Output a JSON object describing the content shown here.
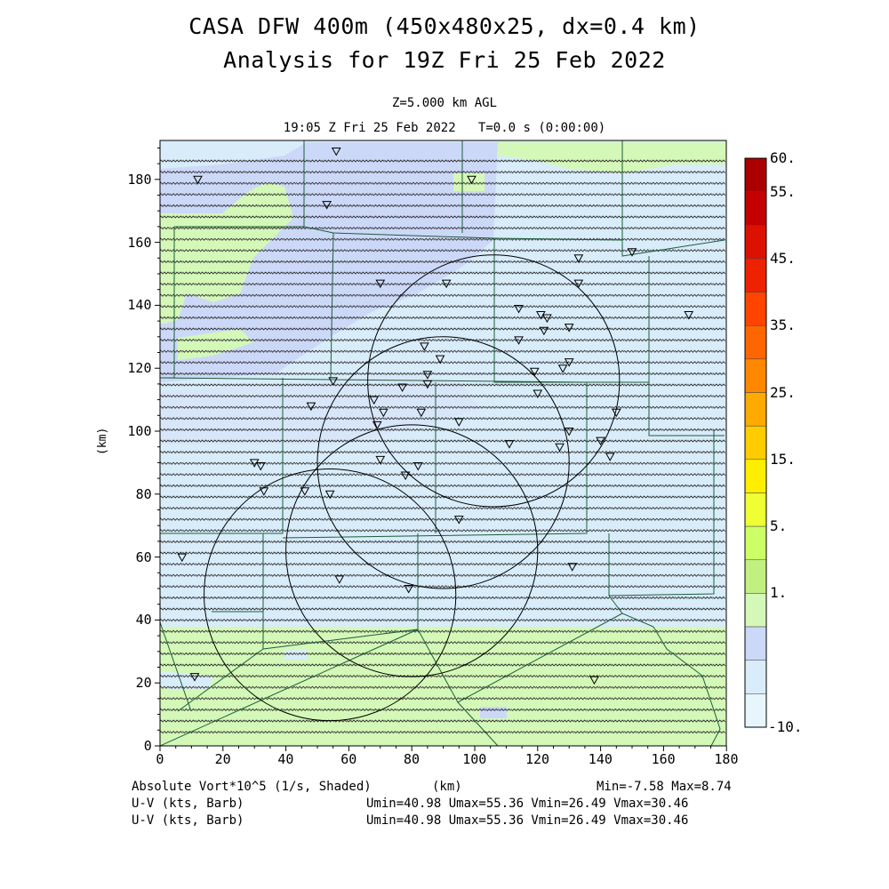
{
  "title_line1": "CASA DFW 400m (450x480x25, dx=0.4 km)",
  "title_line2": "Analysis for 19Z Fri 25 Feb 2022",
  "level": "Z=5.000 km AGL",
  "time_line": "19:05 Z Fri 25 Feb 2022   T=0.0 s (0:00:00)",
  "x_axis": {
    "label": "(km)",
    "ticks": [
      "0",
      "20",
      "40",
      "60",
      "80",
      "100",
      "120",
      "140",
      "160",
      "180"
    ]
  },
  "y_axis": {
    "label": "(km)",
    "ticks": [
      "0",
      "20",
      "40",
      "60",
      "80",
      "100",
      "120",
      "140",
      "160",
      "180"
    ]
  },
  "colorbar": {
    "labels": [
      "60.",
      "55.",
      "45.",
      "35.",
      "25.",
      "15.",
      "5.",
      "1.",
      "-10."
    ],
    "colors": [
      "#aa0000",
      "#c40000",
      "#dd1100",
      "#ee2200",
      "#ff4400",
      "#ff6600",
      "#ff8800",
      "#ffaa00",
      "#ffcc00",
      "#ffee00",
      "#eeff33",
      "#ccff66",
      "#c0f080",
      "#d4f8b8",
      "#ccd8f8",
      "#d8ecfa",
      "#e6f6fc"
    ]
  },
  "footer": {
    "field": "Absolute Vort*10^5 (1/s, Shaded)",
    "xunit": "(km)",
    "minmax": "Min=-7.58 Max=8.74",
    "vector1_label": "U-V (kts, Barb)",
    "vector1_stats": "Umin=40.98 Umax=55.36 Vmin=26.49 Vmax=30.46",
    "vector2_label": "U-V (kts, Barb)",
    "vector2_stats": "Umin=40.98 Umax=55.36 Vmin=26.49 Vmax=30.46"
  },
  "radars": [
    {
      "x": 54,
      "y": 48,
      "r": 40
    },
    {
      "x": 80,
      "y": 62,
      "r": 40
    },
    {
      "x": 90,
      "y": 90,
      "r": 40
    },
    {
      "x": 106,
      "y": 116,
      "r": 40
    }
  ],
  "stations": [
    [
      56,
      189
    ],
    [
      12,
      180
    ],
    [
      99,
      180
    ],
    [
      53,
      172
    ],
    [
      150,
      157
    ],
    [
      133,
      155
    ],
    [
      91,
      147
    ],
    [
      70,
      147
    ],
    [
      133,
      147
    ],
    [
      114,
      139
    ],
    [
      121,
      137
    ],
    [
      123,
      136
    ],
    [
      168,
      137
    ],
    [
      122,
      132
    ],
    [
      130,
      133
    ],
    [
      114,
      129
    ],
    [
      84,
      127
    ],
    [
      89,
      123
    ],
    [
      130,
      122
    ],
    [
      128,
      120
    ],
    [
      119,
      119
    ],
    [
      85,
      118
    ],
    [
      55,
      116
    ],
    [
      85,
      115
    ],
    [
      77,
      114
    ],
    [
      68,
      110
    ],
    [
      120,
      112
    ],
    [
      48,
      108
    ],
    [
      71,
      106
    ],
    [
      83,
      106
    ],
    [
      145,
      106
    ],
    [
      69,
      102
    ],
    [
      95,
      103
    ],
    [
      130,
      100
    ],
    [
      140,
      97
    ],
    [
      111,
      96
    ],
    [
      127,
      95
    ],
    [
      143,
      92
    ],
    [
      70,
      91
    ],
    [
      82,
      89
    ],
    [
      30,
      90
    ],
    [
      32,
      89
    ],
    [
      78,
      86
    ],
    [
      46,
      81
    ],
    [
      33,
      81
    ],
    [
      54,
      80
    ],
    [
      95,
      72
    ],
    [
      7,
      60
    ],
    [
      131,
      57
    ],
    [
      57,
      53
    ],
    [
      79,
      50
    ],
    [
      11,
      22
    ],
    [
      138,
      21
    ]
  ]
}
